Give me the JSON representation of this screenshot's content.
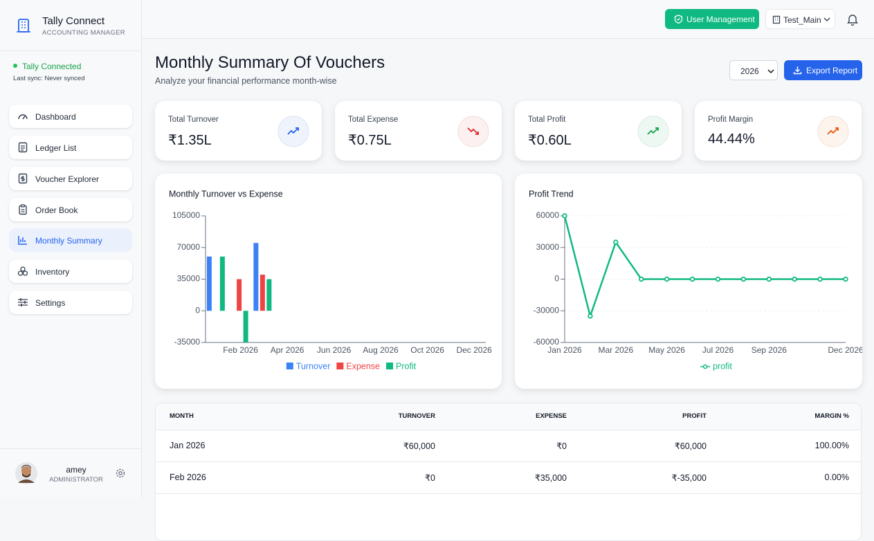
{
  "sidebar": {
    "brand": {
      "title": "Tally Connect",
      "subtitle": "ACCOUNTING MANAGER"
    },
    "status": {
      "label": "Tally Connected",
      "sync": "Last sync: Never synced"
    },
    "nav": [
      "Dashboard",
      "Ledger List",
      "Voucher Explorer",
      "Order Book",
      "Monthly Summary",
      "Inventory",
      "Settings"
    ],
    "user": {
      "name": "amey",
      "role": "ADMINISTRATOR"
    }
  },
  "header": {
    "user_management": "User Management",
    "company": "Test_Main"
  },
  "page": {
    "title": "Monthly Summary Of Vouchers",
    "subtitle": "Analyze your financial performance month-wise",
    "year": "2026",
    "export": "Export Report"
  },
  "kpis": [
    {
      "label": "Total Turnover",
      "value": "₹1.35L"
    },
    {
      "label": "Total Expense",
      "value": "₹0.75L"
    },
    {
      "label": "Total Profit",
      "value": "₹0.60L"
    },
    {
      "label": "Profit Margin",
      "value": "44.44%"
    }
  ],
  "chart_data": [
    {
      "type": "bar",
      "title": "Monthly Turnover vs Expense",
      "categories": [
        null,
        "Feb 2026",
        null,
        "Apr 2026",
        null,
        "Jun 2026",
        null,
        "Aug 2026",
        null,
        "Oct 2026",
        null,
        "Dec 2026"
      ],
      "series": [
        {
          "name": "Turnover",
          "color": "#3b82f6",
          "values": [
            60000,
            0,
            75000,
            0,
            0,
            0,
            0,
            0,
            0,
            0,
            0,
            0
          ]
        },
        {
          "name": "Expense",
          "color": "#ef4444",
          "values": [
            0,
            35000,
            40000,
            0,
            0,
            0,
            0,
            0,
            0,
            0,
            0,
            0
          ]
        },
        {
          "name": "Profit",
          "color": "#10b981",
          "values": [
            60000,
            -35000,
            35000,
            0,
            0,
            0,
            0,
            0,
            0,
            0,
            0,
            0
          ]
        }
      ],
      "ylim": [
        -35000,
        105000
      ],
      "yticks": [
        -35000,
        0,
        35000,
        70000,
        105000
      ],
      "grid": false
    },
    {
      "type": "line",
      "title": "Profit Trend",
      "categories": [
        "Jan 2026",
        null,
        "Mar 2026",
        null,
        "May 2026",
        null,
        "Jul 2026",
        null,
        "Sep 2026",
        null,
        null,
        "Dec 2026"
      ],
      "series": [
        {
          "name": "profit",
          "color": "#10b981",
          "values": [
            60000,
            -35000,
            35000,
            0,
            0,
            0,
            0,
            0,
            0,
            0,
            0,
            0
          ]
        }
      ],
      "ylim": [
        -60000,
        60000
      ],
      "yticks": [
        -60000,
        -30000,
        0,
        30000,
        60000
      ],
      "grid": true
    }
  ],
  "table": {
    "columns": [
      "MONTH",
      "TURNOVER",
      "EXPENSE",
      "PROFIT",
      "MARGIN %"
    ],
    "rows": [
      [
        "Jan 2026",
        "₹60,000",
        "₹0",
        "₹60,000",
        "100.00%"
      ],
      [
        "Feb 2026",
        "₹0",
        "₹35,000",
        "₹-35,000",
        "0.00%"
      ]
    ]
  }
}
